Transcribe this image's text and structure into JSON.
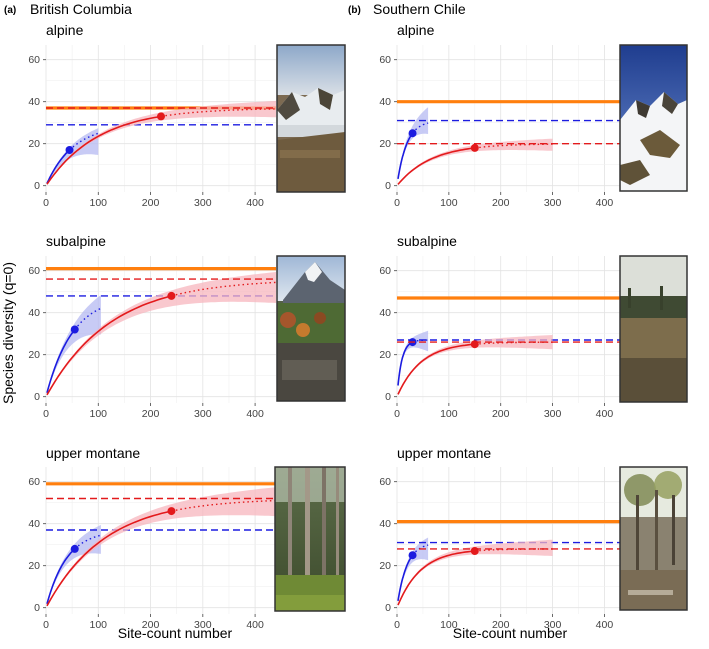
{
  "figure": {
    "ylabel": "Species diversity (q=0)",
    "xlabel": "Site-count number",
    "panel_a": {
      "letter": "(a)",
      "region": "British Columbia"
    },
    "panel_b": {
      "letter": "(b)",
      "region": "Southern Chile"
    }
  },
  "colors": {
    "red": "#e31a1c",
    "red_band": "#f7b6bd",
    "blue": "#1c1ce0",
    "blue_band": "#b6b9f2",
    "orange": "#ff7f0e",
    "grid": "#e3e3e3"
  },
  "chart_data": [
    {
      "type": "line",
      "id": "bc-alpine",
      "region": "British Columbia",
      "title": "alpine",
      "xlim": [
        0,
        440
      ],
      "ylim": [
        -3,
        67
      ],
      "xticks": [
        0,
        100,
        200,
        300,
        400
      ],
      "yticks": [
        0,
        20,
        40,
        60
      ],
      "grid": true,
      "series": [
        {
          "color": "blue",
          "observed_n": 45,
          "observed_diversity": 17,
          "extrapolate_to": 100,
          "asymptote": 29,
          "ci_at_end": [
            15,
            27
          ]
        },
        {
          "color": "red",
          "observed_n": 220,
          "observed_diversity": 33,
          "extrapolate_to": 440,
          "asymptote": 37,
          "ci_at_end": [
            33,
            40
          ]
        }
      ],
      "reference_line": 37,
      "photo": "alpine tundra with snow patches"
    },
    {
      "type": "line",
      "id": "bc-subalpine",
      "region": "British Columbia",
      "title": "subalpine",
      "xlim": [
        0,
        440
      ],
      "ylim": [
        -3,
        67
      ],
      "xticks": [
        0,
        100,
        200,
        300,
        400
      ],
      "yticks": [
        0,
        20,
        40,
        60
      ],
      "grid": true,
      "series": [
        {
          "color": "blue",
          "observed_n": 55,
          "observed_diversity": 32,
          "extrapolate_to": 105,
          "asymptote": 48,
          "ci_at_end": [
            30,
            48
          ]
        },
        {
          "color": "red",
          "observed_n": 240,
          "observed_diversity": 48,
          "extrapolate_to": 440,
          "asymptote": 56,
          "ci_at_end": [
            45,
            59
          ]
        }
      ],
      "reference_line": 61,
      "photo": "subalpine meadow below snowy peak"
    },
    {
      "type": "line",
      "id": "bc-upper-montane",
      "region": "British Columbia",
      "title": "upper montane",
      "xlim": [
        0,
        440
      ],
      "ylim": [
        -3,
        67
      ],
      "xticks": [
        0,
        100,
        200,
        300,
        400
      ],
      "yticks": [
        0,
        20,
        40,
        60
      ],
      "grid": true,
      "series": [
        {
          "color": "blue",
          "observed_n": 55,
          "observed_diversity": 28,
          "extrapolate_to": 105,
          "asymptote": 37,
          "ci_at_end": [
            26,
            39
          ]
        },
        {
          "color": "red",
          "observed_n": 240,
          "observed_diversity": 46,
          "extrapolate_to": 440,
          "asymptote": 52,
          "ci_at_end": [
            44,
            57
          ]
        }
      ],
      "reference_line": 59,
      "photo": "upper montane conifer forest"
    },
    {
      "type": "line",
      "id": "sc-alpine",
      "region": "Southern Chile",
      "title": "alpine",
      "xlim": [
        0,
        430
      ],
      "ylim": [
        -3,
        67
      ],
      "xticks": [
        0,
        100,
        200,
        300,
        400
      ],
      "yticks": [
        0,
        20,
        40,
        60
      ],
      "grid": true,
      "series": [
        {
          "color": "blue",
          "observed_n": 30,
          "observed_diversity": 25,
          "extrapolate_to": 60,
          "asymptote": 31,
          "ci_at_end": [
            25,
            37
          ]
        },
        {
          "color": "red",
          "observed_n": 150,
          "observed_diversity": 18,
          "extrapolate_to": 300,
          "asymptote": 20,
          "ci_at_end": [
            17,
            22
          ]
        }
      ],
      "reference_line": 40,
      "photo": "alpine ridge with snow"
    },
    {
      "type": "line",
      "id": "sc-subalpine",
      "region": "Southern Chile",
      "title": "subalpine",
      "xlim": [
        0,
        430
      ],
      "ylim": [
        -3,
        67
      ],
      "xticks": [
        0,
        100,
        200,
        300,
        400
      ],
      "yticks": [
        0,
        20,
        40,
        60
      ],
      "grid": true,
      "series": [
        {
          "color": "blue",
          "observed_n": 30,
          "observed_diversity": 26,
          "extrapolate_to": 60,
          "asymptote": 27,
          "ci_at_end": [
            22,
            31
          ]
        },
        {
          "color": "red",
          "observed_n": 150,
          "observed_diversity": 25,
          "extrapolate_to": 300,
          "asymptote": 26,
          "ci_at_end": [
            23,
            29
          ]
        }
      ],
      "reference_line": 47,
      "photo": "subalpine wetland with shrubs"
    },
    {
      "type": "line",
      "id": "sc-upper-montane",
      "region": "Southern Chile",
      "title": "upper montane",
      "xlim": [
        0,
        430
      ],
      "ylim": [
        -3,
        67
      ],
      "xticks": [
        0,
        100,
        200,
        300,
        400
      ],
      "yticks": [
        0,
        20,
        40,
        60
      ],
      "grid": true,
      "series": [
        {
          "color": "blue",
          "observed_n": 30,
          "observed_diversity": 25,
          "extrapolate_to": 60,
          "asymptote": 31,
          "ci_at_end": [
            23,
            33
          ]
        },
        {
          "color": "red",
          "observed_n": 150,
          "observed_diversity": 27,
          "extrapolate_to": 300,
          "asymptote": 28,
          "ci_at_end": [
            25,
            32
          ]
        }
      ],
      "reference_line": 41,
      "photo": "open Nothofagus woodland"
    }
  ]
}
